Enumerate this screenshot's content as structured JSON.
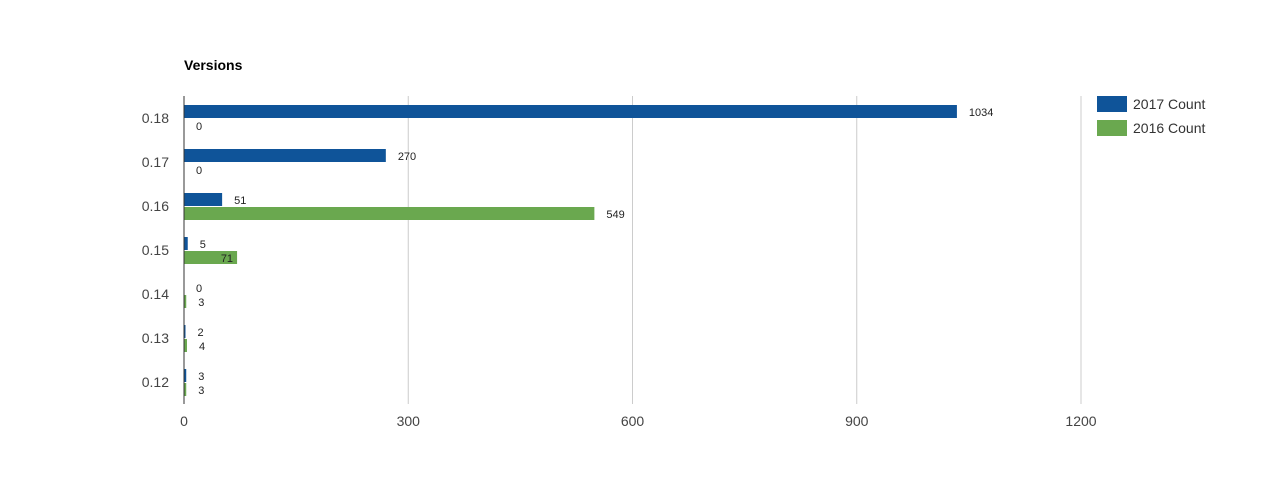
{
  "chart_data": {
    "type": "bar",
    "orientation": "horizontal",
    "title": "Versions",
    "categories": [
      "0.18",
      "0.17",
      "0.16",
      "0.15",
      "0.14",
      "0.13",
      "0.12"
    ],
    "series": [
      {
        "name": "2017 Count",
        "color": "#0f5499",
        "values": [
          1034,
          270,
          51,
          5,
          0,
          2,
          3
        ]
      },
      {
        "name": "2016 Count",
        "color": "#6aa84f",
        "values": [
          0,
          0,
          549,
          71,
          3,
          4,
          3
        ]
      }
    ],
    "xlim": [
      0,
      1200
    ],
    "xticks": [
      0,
      300,
      600,
      900,
      1200
    ],
    "grid": true,
    "legend": "right"
  }
}
